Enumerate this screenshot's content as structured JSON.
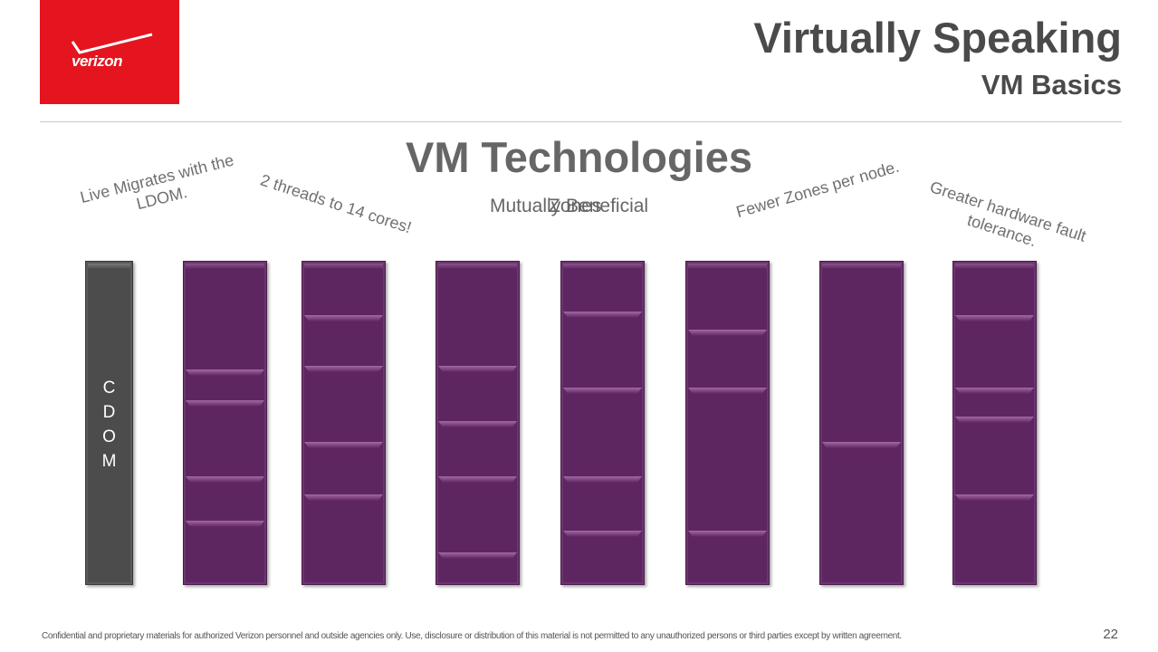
{
  "header": {
    "logo_text": "verizon",
    "title": "Virtually Speaking",
    "subtitle": "VM Basics"
  },
  "slide": {
    "heading": "VM Technologies",
    "overlap_texts": [
      "Mutually Beneficial",
      "Zones"
    ],
    "callouts": [
      "Live Migrates with the LDOM.",
      "2 threads to 14 cores!",
      "Fewer Zones per node.",
      "Greater hardware fault tolerance."
    ],
    "cdom_label": "CDOM"
  },
  "colors": {
    "brand_red": "#e4151f",
    "column_purple": "#5e2660",
    "cdom_gray": "#4c4c4c"
  },
  "footer": {
    "disclaimer": "Confidential and proprietary materials for authorized Verizon personnel and outside agencies only. Use, disclosure or distribution of this material is not permitted to any unauthorized persons or third parties except by written agreement.",
    "page_number": "22"
  }
}
